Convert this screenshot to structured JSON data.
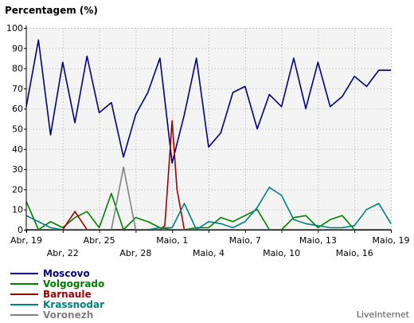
{
  "chart_data": {
    "type": "line",
    "title": "Percentagem (%)",
    "xlabel": "",
    "ylabel": "",
    "ylim": [
      0,
      100
    ],
    "yticks": [
      0,
      10,
      20,
      30,
      40,
      50,
      60,
      70,
      80,
      90,
      100
    ],
    "x_start": "Abr, 19",
    "x_end": "Maio, 19",
    "x_ticks": [
      {
        "label": "Abr, 19",
        "day": 0,
        "row": 0
      },
      {
        "label": "Abr, 22",
        "day": 3,
        "row": 1
      },
      {
        "label": "Abr, 25",
        "day": 6,
        "row": 0
      },
      {
        "label": "Abr, 28",
        "day": 9,
        "row": 1
      },
      {
        "label": "Maio, 1",
        "day": 12,
        "row": 0
      },
      {
        "label": "Maio, 4",
        "day": 15,
        "row": 1
      },
      {
        "label": "Maio, 7",
        "day": 18,
        "row": 0
      },
      {
        "label": "Maio, 10",
        "day": 21,
        "row": 1
      },
      {
        "label": "Maio, 13",
        "day": 24,
        "row": 0
      },
      {
        "label": "Maio, 16",
        "day": 27,
        "row": 1
      },
      {
        "label": "Maio, 19",
        "day": 30,
        "row": 0
      }
    ],
    "grid": true,
    "legend_position": "bottom-left",
    "series": [
      {
        "name": "Moscovo",
        "color": "#000080",
        "values": [
          [
            0,
            61
          ],
          [
            1,
            94
          ],
          [
            2,
            47
          ],
          [
            3,
            83
          ],
          [
            4,
            53
          ],
          [
            5,
            86
          ],
          [
            6,
            58
          ],
          [
            7,
            63
          ],
          [
            8,
            36
          ],
          [
            9,
            57
          ],
          [
            10,
            68
          ],
          [
            11,
            85
          ],
          [
            12,
            33
          ],
          [
            13,
            57
          ],
          [
            14,
            85
          ],
          [
            15,
            41
          ],
          [
            16,
            48
          ],
          [
            17,
            68
          ],
          [
            18,
            71
          ],
          [
            19,
            50
          ],
          [
            20,
            67
          ],
          [
            21,
            61
          ],
          [
            22,
            85
          ],
          [
            23,
            60
          ],
          [
            24,
            83
          ],
          [
            25,
            61
          ],
          [
            26,
            66
          ],
          [
            27,
            76
          ],
          [
            28,
            71
          ],
          [
            29,
            79
          ],
          [
            30,
            79
          ]
        ]
      },
      {
        "name": "Volgogrado",
        "color": "#008000",
        "values": [
          [
            0,
            14
          ],
          [
            1,
            0
          ],
          [
            2,
            4
          ],
          [
            3,
            1
          ],
          [
            4,
            6
          ],
          [
            5,
            9
          ],
          [
            6,
            1
          ],
          [
            7,
            18
          ],
          [
            8,
            0
          ],
          [
            9,
            6
          ],
          [
            10,
            4
          ],
          [
            11,
            1
          ],
          [
            12,
            0
          ],
          [
            13,
            0
          ],
          [
            14,
            1
          ],
          [
            15,
            1
          ],
          [
            16,
            6
          ],
          [
            17,
            4
          ],
          [
            18,
            7
          ],
          [
            19,
            10
          ],
          [
            20,
            0
          ],
          [
            21,
            0
          ],
          [
            22,
            6
          ],
          [
            23,
            7
          ],
          [
            24,
            1
          ],
          [
            25,
            5
          ],
          [
            26,
            7
          ],
          [
            27,
            0
          ],
          [
            28,
            0
          ],
          [
            29,
            0
          ],
          [
            30,
            0
          ]
        ]
      },
      {
        "name": "Barnaule",
        "color": "#a00000",
        "values": [
          [
            0,
            0
          ],
          [
            1,
            0
          ],
          [
            2,
            0
          ],
          [
            3,
            0
          ],
          [
            4,
            9
          ],
          [
            5,
            0
          ],
          [
            6,
            0
          ],
          [
            7,
            0
          ],
          [
            8,
            0
          ],
          [
            9,
            0
          ],
          [
            10,
            0
          ],
          [
            11,
            0
          ],
          [
            11.4,
            2
          ],
          [
            12,
            54
          ],
          [
            12.4,
            20
          ],
          [
            13,
            0
          ],
          [
            14,
            0
          ],
          [
            15,
            0
          ],
          [
            16,
            0
          ],
          [
            17,
            0
          ],
          [
            18,
            0
          ],
          [
            19,
            0
          ],
          [
            20,
            0
          ],
          [
            21,
            0
          ],
          [
            22,
            0
          ],
          [
            23,
            0
          ],
          [
            24,
            0
          ],
          [
            25,
            0
          ],
          [
            26,
            0
          ],
          [
            27,
            0
          ],
          [
            28,
            0
          ],
          [
            29,
            0
          ],
          [
            30,
            0
          ]
        ]
      },
      {
        "name": "Krassnodar",
        "color": "#008080",
        "values": [
          [
            0,
            7
          ],
          [
            1,
            4
          ],
          [
            2,
            1
          ],
          [
            3,
            0
          ],
          [
            4,
            0
          ],
          [
            5,
            0
          ],
          [
            6,
            0
          ],
          [
            7,
            0
          ],
          [
            8,
            0
          ],
          [
            9,
            0
          ],
          [
            10,
            0
          ],
          [
            11,
            1
          ],
          [
            12,
            1
          ],
          [
            13,
            13
          ],
          [
            14,
            0
          ],
          [
            15,
            4
          ],
          [
            16,
            3
          ],
          [
            17,
            1
          ],
          [
            18,
            4
          ],
          [
            19,
            11
          ],
          [
            20,
            21
          ],
          [
            21,
            17
          ],
          [
            22,
            5
          ],
          [
            23,
            3
          ],
          [
            24,
            2
          ],
          [
            25,
            1
          ],
          [
            26,
            1
          ],
          [
            27,
            2
          ],
          [
            28,
            10
          ],
          [
            29,
            13
          ],
          [
            30,
            3
          ]
        ]
      },
      {
        "name": "Voronezh",
        "color": "#808080",
        "values": [
          [
            0,
            0
          ],
          [
            1,
            0
          ],
          [
            2,
            0
          ],
          [
            3,
            0
          ],
          [
            4,
            0
          ],
          [
            5,
            0
          ],
          [
            6,
            0
          ],
          [
            7,
            0
          ],
          [
            8,
            31
          ],
          [
            9,
            0
          ],
          [
            10,
            0
          ],
          [
            11,
            0
          ],
          [
            12,
            0
          ],
          [
            13,
            0
          ],
          [
            14,
            0
          ],
          [
            15,
            0
          ],
          [
            16,
            0
          ],
          [
            17,
            0
          ],
          [
            18,
            0
          ],
          [
            19,
            0
          ],
          [
            20,
            0
          ],
          [
            21,
            0
          ],
          [
            22,
            0
          ],
          [
            23,
            0
          ],
          [
            24,
            0
          ],
          [
            25,
            0
          ],
          [
            26,
            0
          ],
          [
            27,
            0
          ],
          [
            28,
            0
          ],
          [
            29,
            0
          ],
          [
            30,
            0
          ]
        ]
      }
    ]
  },
  "credit": "LiveInternet"
}
